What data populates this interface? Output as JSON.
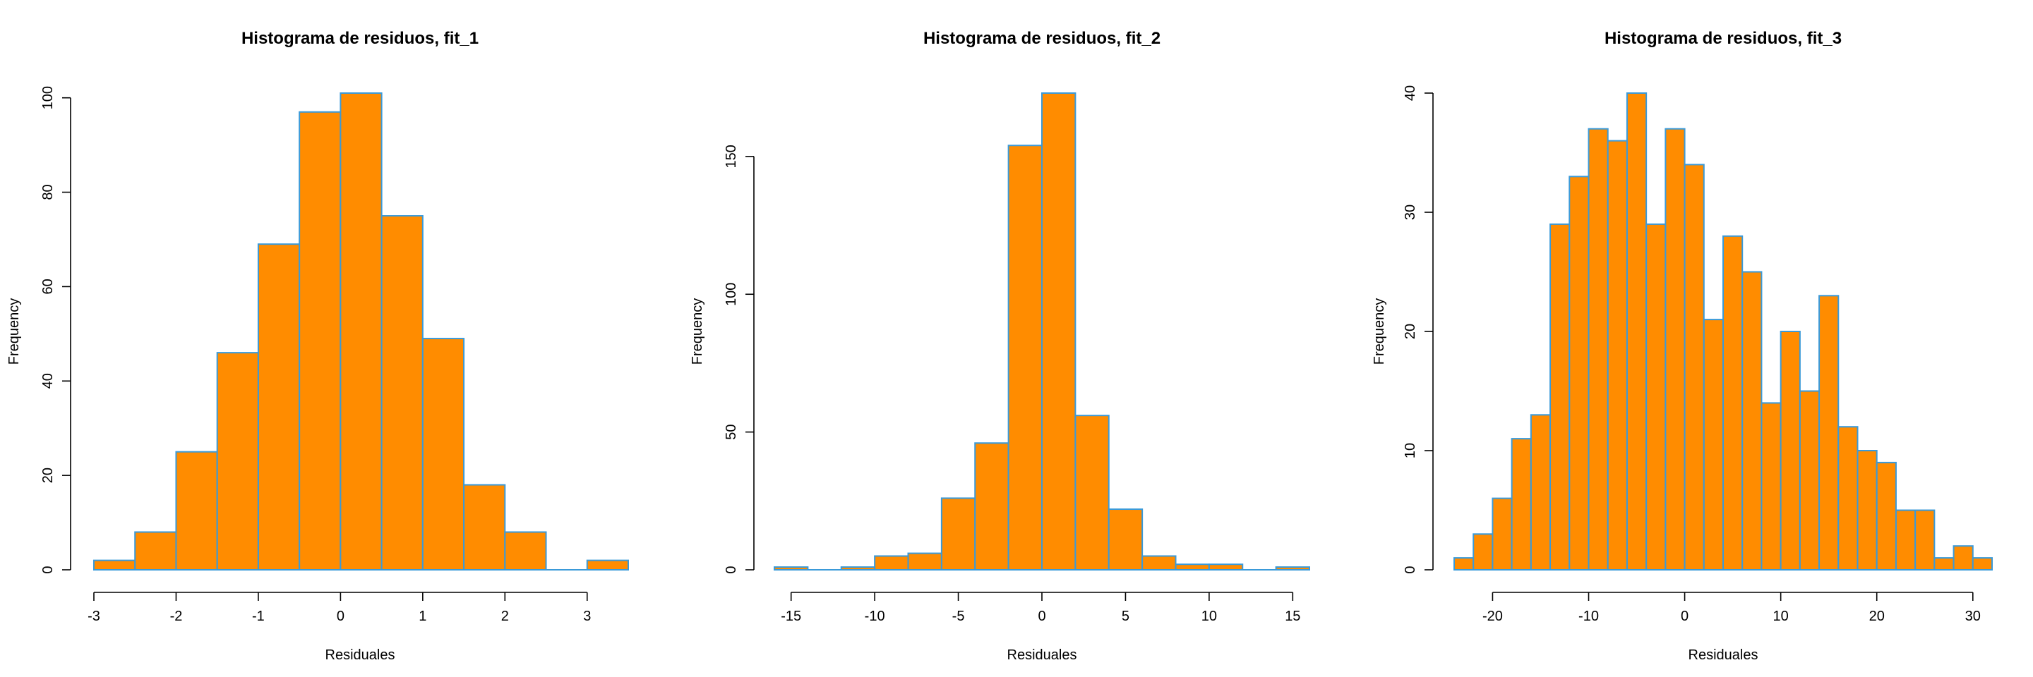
{
  "colors": {
    "bar_fill": "#FF8C00",
    "bar_border": "#3A9AD9",
    "axis": "#000000",
    "background": "#FFFFFF"
  },
  "chart_data": [
    {
      "type": "bar",
      "subtype": "histogram",
      "title": "Histograma de residuos, fit_1",
      "xlabel": "Residuales",
      "ylabel": "Frequency",
      "bin_edges": [
        -3,
        -2.5,
        -2,
        -1.5,
        -1,
        -0.5,
        0,
        0.5,
        1,
        1.5,
        2,
        2.5,
        3,
        3.5
      ],
      "values": [
        2,
        8,
        25,
        46,
        69,
        97,
        101,
        75,
        49,
        18,
        8,
        0,
        2
      ],
      "xlim": [
        -3,
        3.5
      ],
      "ylim": [
        0,
        101
      ],
      "xticks": [
        -3,
        -2,
        -1,
        0,
        1,
        2,
        3
      ],
      "xtick_labels": [
        "-3",
        "-2",
        "-1",
        "0",
        "1",
        "2",
        "3"
      ],
      "yticks": [
        0,
        20,
        40,
        60,
        80,
        100
      ],
      "ytick_labels": [
        "0",
        "20",
        "40",
        "60",
        "80",
        "100"
      ],
      "grid": false
    },
    {
      "type": "bar",
      "subtype": "histogram",
      "title": "Histograma de residuos, fit_2",
      "xlabel": "Residuales",
      "ylabel": "Frequency",
      "bin_edges": [
        -16,
        -14,
        -12,
        -10,
        -8,
        -6,
        -4,
        -2,
        0,
        2,
        4,
        6,
        8,
        10,
        12,
        14,
        16
      ],
      "values": [
        1,
        0,
        1,
        5,
        6,
        26,
        46,
        154,
        173,
        56,
        22,
        5,
        2,
        2,
        0,
        1
      ],
      "xlim": [
        -16,
        16
      ],
      "ylim": [
        0,
        173
      ],
      "xticks": [
        -15,
        -10,
        -5,
        0,
        5,
        10,
        15
      ],
      "xtick_labels": [
        "-15",
        "-10",
        "-5",
        "0",
        "5",
        "10",
        "15"
      ],
      "yticks": [
        0,
        50,
        100,
        150
      ],
      "ytick_labels": [
        "0",
        "50",
        "100",
        "150"
      ],
      "grid": false
    },
    {
      "type": "bar",
      "subtype": "histogram",
      "title": "Histograma de residuos, fit_3",
      "xlabel": "Residuales",
      "ylabel": "Frequency",
      "bin_edges": [
        -24,
        -22,
        -20,
        -18,
        -16,
        -14,
        -12,
        -10,
        -8,
        -6,
        -4,
        -2,
        0,
        2,
        4,
        6,
        8,
        10,
        12,
        14,
        16,
        18,
        20,
        22,
        24,
        26,
        28,
        30,
        32
      ],
      "values": [
        1,
        3,
        6,
        11,
        13,
        29,
        33,
        37,
        36,
        40,
        29,
        37,
        34,
        21,
        28,
        25,
        14,
        20,
        15,
        23,
        12,
        10,
        9,
        5,
        5,
        1,
        2,
        1
      ],
      "xlim": [
        -24,
        32
      ],
      "ylim": [
        0,
        40
      ],
      "xticks": [
        -20,
        -10,
        0,
        10,
        20,
        30
      ],
      "xtick_labels": [
        "-20",
        "-10",
        "0",
        "10",
        "20",
        "30"
      ],
      "yticks": [
        0,
        10,
        20,
        30,
        40
      ],
      "ytick_labels": [
        "0",
        "10",
        "20",
        "30",
        "40"
      ],
      "grid": false
    }
  ]
}
